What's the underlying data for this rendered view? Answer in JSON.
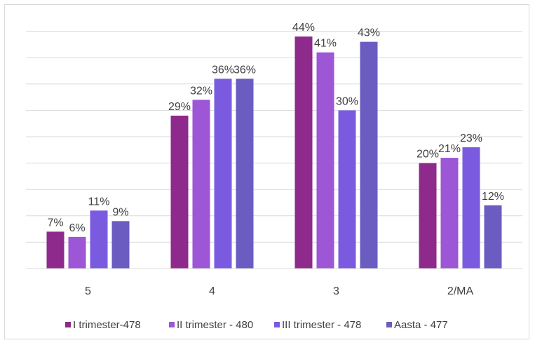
{
  "chart_data": {
    "type": "bar",
    "title": "",
    "xlabel": "",
    "ylabel": "",
    "ylim": [
      0,
      0.5
    ],
    "grid": true,
    "legend_position": "bottom",
    "categories": [
      "5",
      "4",
      "3",
      "2/MA"
    ],
    "series": [
      {
        "name": "I trimester-478",
        "color": "#8e2a8c",
        "values": [
          0.07,
          0.29,
          0.44,
          0.2
        ],
        "labels": [
          "7%",
          "29%",
          "44%",
          "20%"
        ]
      },
      {
        "name": "II trimester - 480",
        "color": "#9c56d6",
        "values": [
          0.06,
          0.32,
          0.41,
          0.21
        ],
        "labels": [
          "6%",
          "32%",
          "41%",
          "21%"
        ]
      },
      {
        "name": "III trimester - 478",
        "color": "#7a5bdf",
        "values": [
          0.11,
          0.36,
          0.3,
          0.23
        ],
        "labels": [
          "11%",
          "36%",
          "30%",
          "23%"
        ]
      },
      {
        "name": "Aasta - 477",
        "color": "#6a5cc0",
        "values": [
          0.09,
          0.36,
          0.43,
          0.12
        ],
        "labels": [
          "9%",
          "36%",
          "43%",
          "12%"
        ]
      }
    ]
  }
}
